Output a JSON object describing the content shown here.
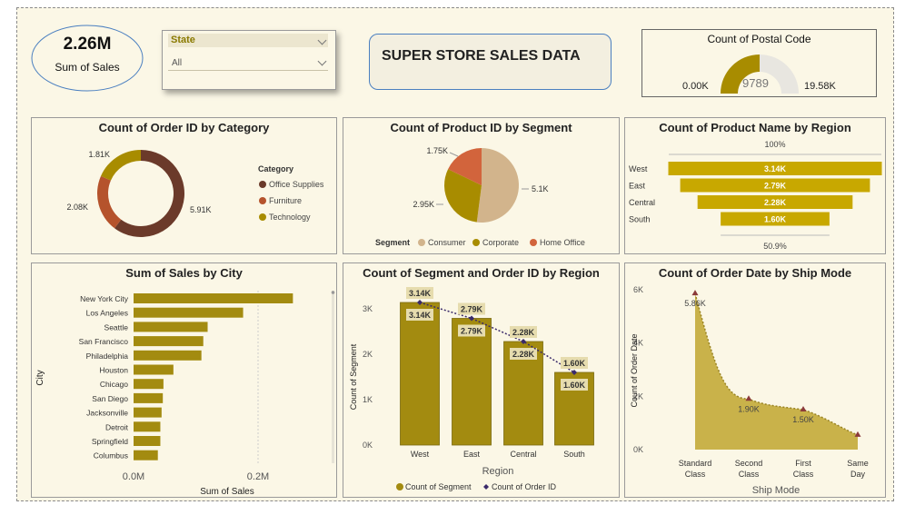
{
  "kpi": {
    "value": "2.26M",
    "label": "Sum of Sales"
  },
  "slicer": {
    "title": "State",
    "selected": "All"
  },
  "banner": {
    "title": "SUPER STORE SALES DATA"
  },
  "gauge": {
    "title": "Count of Postal Code",
    "min_label": "0.00K",
    "value_label": "9789",
    "max_label": "19.58K",
    "value": 9789,
    "max": 19580
  },
  "colors": {
    "olive": "#a88c00",
    "brown": "#6b3a2a",
    "orange": "#b5532c",
    "tan": "#d2b48c",
    "gold": "#c8a800",
    "bar": "#a38b10",
    "navy": "#3a2a6a",
    "area": "#c9b24a"
  },
  "chart_data": [
    {
      "type": "pie",
      "title": "Count of Order ID by Category",
      "legend_title": "Category",
      "categories": [
        "Office Supplies",
        "Furniture",
        "Technology"
      ],
      "values": [
        5910,
        2080,
        1810
      ],
      "labels": [
        "5.91K",
        "2.08K",
        "1.81K"
      ],
      "colors": [
        "#6b3a2a",
        "#b5532c",
        "#a88c00"
      ],
      "donut": true
    },
    {
      "type": "pie",
      "title": "Count of Product ID by Segment",
      "legend_title": "Segment",
      "categories": [
        "Consumer",
        "Corporate",
        "Home Office"
      ],
      "values": [
        5100,
        2950,
        1750
      ],
      "labels": [
        "5.1K",
        "2.95K",
        "1.75K"
      ],
      "colors": [
        "#d2b48c",
        "#a88c00",
        "#d2643c"
      ]
    },
    {
      "type": "bar",
      "title": "Count of Product Name by Region",
      "categories": [
        "West",
        "East",
        "Central",
        "South"
      ],
      "values": [
        3140,
        2790,
        2280,
        1600
      ],
      "labels": [
        "3.14K",
        "2.79K",
        "2.28K",
        "1.60K"
      ],
      "top_label": "100%",
      "bottom_label": "50.9%"
    },
    {
      "type": "bar",
      "title": "Sum of Sales by City",
      "categories": [
        "New York City",
        "Los Angeles",
        "Seattle",
        "San Francisco",
        "Philadelphia",
        "Houston",
        "Chicago",
        "San Diego",
        "Jacksonville",
        "Detroit",
        "Springfield",
        "Columbus"
      ],
      "values": [
        256000,
        176000,
        119000,
        112000,
        109000,
        64000,
        48000,
        47000,
        45000,
        43000,
        43000,
        39000
      ],
      "xlabel": "Sum of Sales",
      "ylabel": "City",
      "xticks": [
        "0.0M",
        "0.2M"
      ],
      "xtick_values": [
        0,
        200000
      ]
    },
    {
      "type": "bar",
      "title": "Count of Segment and Order ID by Region",
      "categories": [
        "West",
        "East",
        "Central",
        "South"
      ],
      "series": [
        {
          "name": "Count of Segment",
          "values": [
            3140,
            2790,
            2280,
            1600
          ],
          "labels": [
            "3.14K",
            "2.79K",
            "2.28K",
            "1.60K"
          ]
        },
        {
          "name": "Count of Order ID",
          "values": [
            3140,
            2790,
            2280,
            1600
          ],
          "labels": [
            "3.14K",
            "2.79K",
            "2.28K",
            "1.60K"
          ]
        }
      ],
      "xlabel": "Region",
      "ylabel": "Count of Segment",
      "yticks": [
        "0K",
        "1K",
        "2K",
        "3K"
      ],
      "ylim": [
        0,
        3400
      ]
    },
    {
      "type": "area",
      "title": "Count of Order Date by Ship Mode",
      "categories": [
        "Standard Class",
        "Second Class",
        "First Class",
        "Same Day"
      ],
      "values": [
        5860,
        1900,
        1500,
        550
      ],
      "labels": [
        "5.86K",
        "1.90K",
        "1.50K",
        ""
      ],
      "xlabel": "Ship Mode",
      "ylabel": "Count of Order Date",
      "yticks": [
        "0K",
        "2K",
        "4K",
        "6K"
      ],
      "ylim": [
        0,
        6000
      ]
    }
  ]
}
